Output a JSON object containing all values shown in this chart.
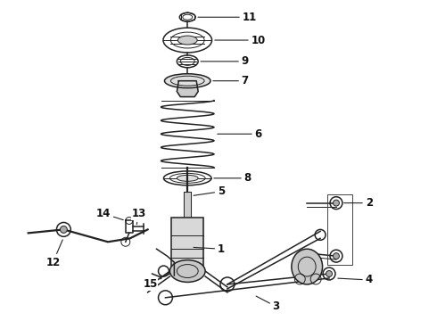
{
  "bg_color": "#ffffff",
  "line_color": "#222222",
  "label_color": "#111111",
  "fig_width": 4.9,
  "fig_height": 3.6,
  "dpi": 100
}
